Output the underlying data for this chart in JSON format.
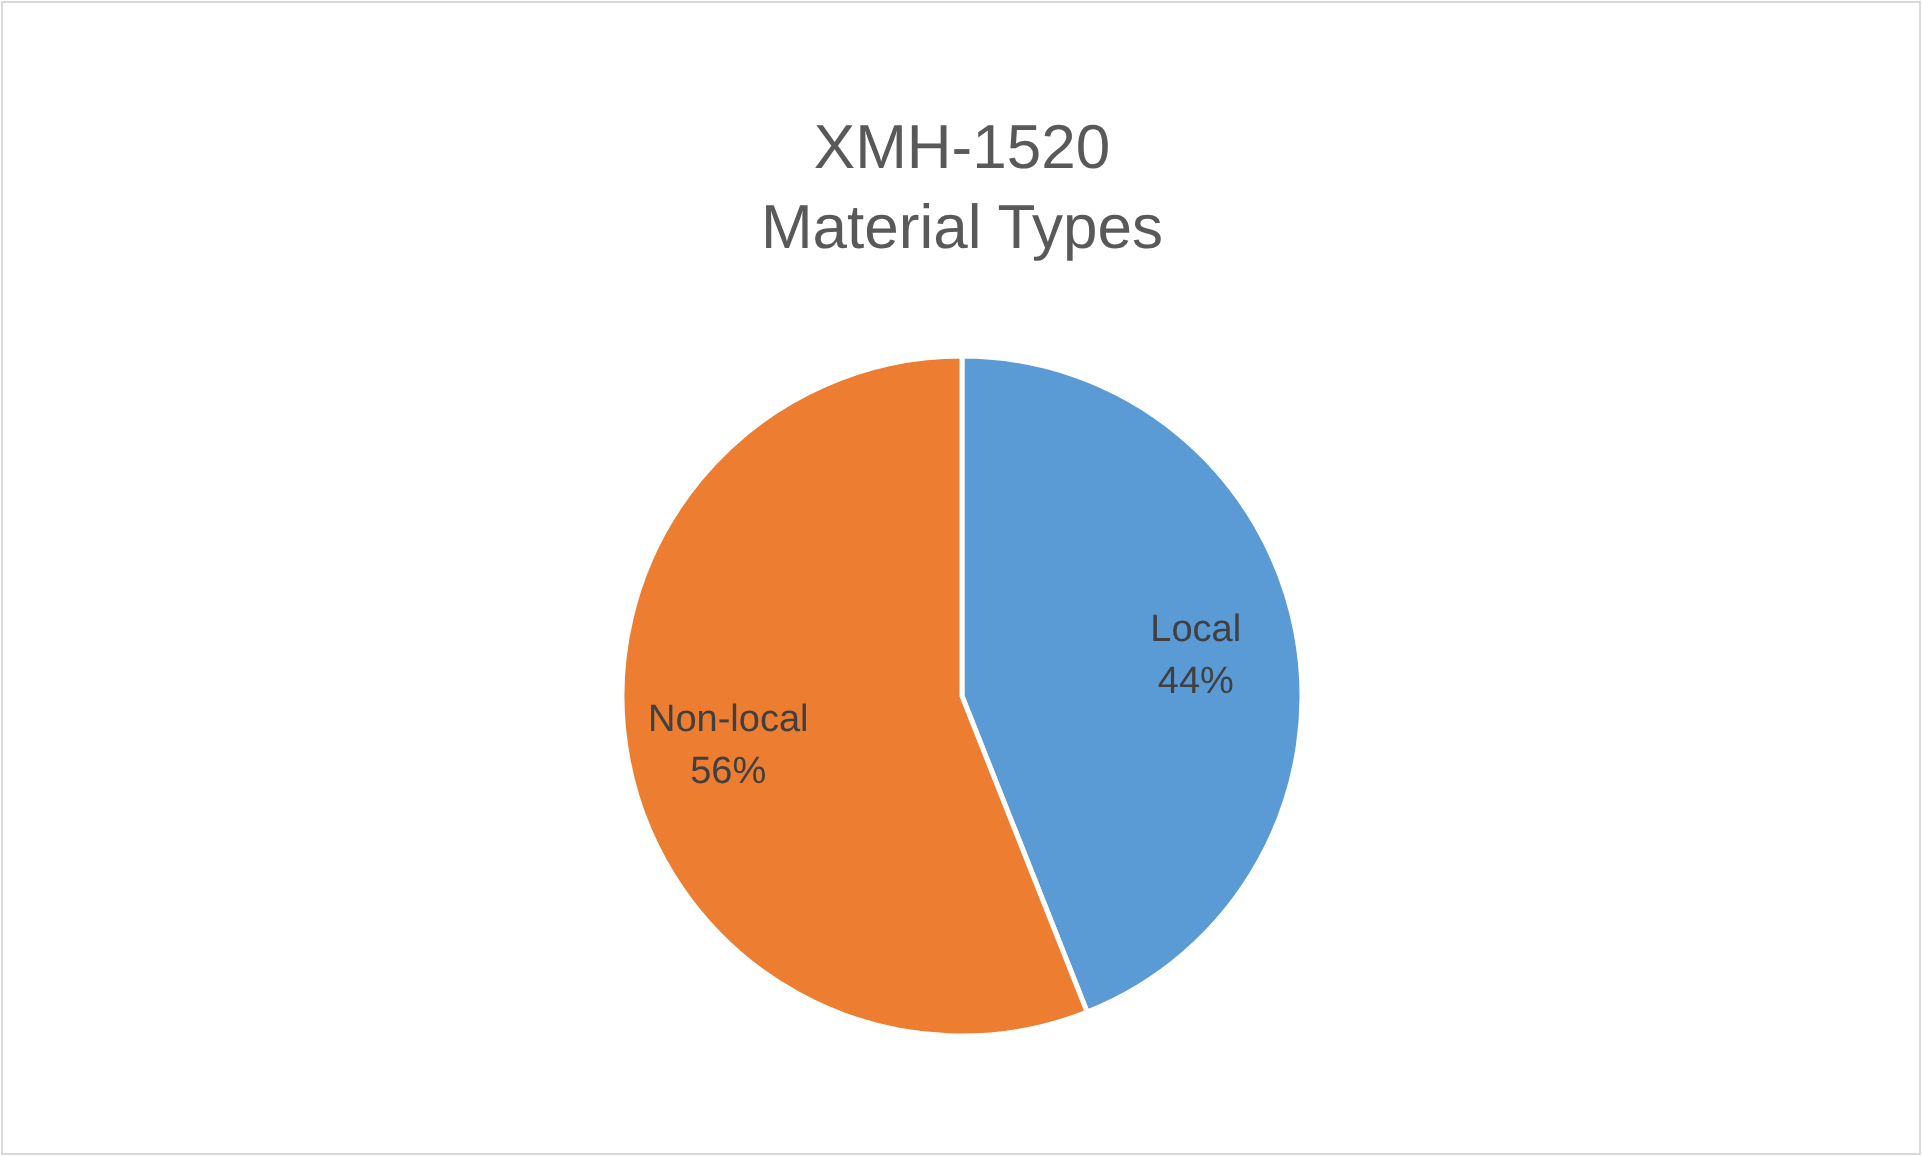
{
  "chart_data": {
    "type": "pie",
    "title": "XMH-1520\nMaterial Types",
    "categories": [
      "Local",
      "Non-local"
    ],
    "values": [
      44,
      56
    ],
    "colors": [
      "#5b9bd5",
      "#ed7d31"
    ],
    "value_labels": [
      "44%",
      "56%"
    ],
    "legend": false
  }
}
